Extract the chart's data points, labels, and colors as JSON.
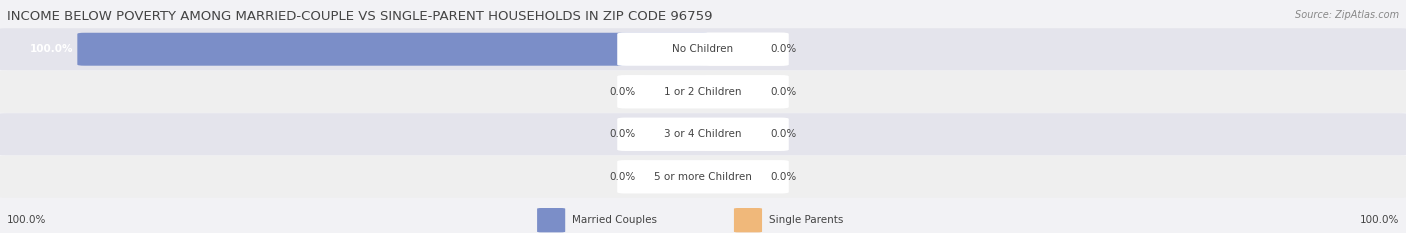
{
  "title": "INCOME BELOW POVERTY AMONG MARRIED-COUPLE VS SINGLE-PARENT HOUSEHOLDS IN ZIP CODE 96759",
  "source": "Source: ZipAtlas.com",
  "categories": [
    "No Children",
    "1 or 2 Children",
    "3 or 4 Children",
    "5 or more Children"
  ],
  "married_values": [
    100.0,
    0.0,
    0.0,
    0.0
  ],
  "single_values": [
    0.0,
    0.0,
    0.0,
    0.0
  ],
  "married_color": "#7B8EC8",
  "single_color": "#F0B87A",
  "married_color_light": "#B0BBDD",
  "single_color_light": "#F5D4A8",
  "row_bg_dark": "#E4E4EC",
  "row_bg_light": "#EFEFEF",
  "overall_bg": "#F2F2F5",
  "title_color": "#444444",
  "value_color": "#444444",
  "legend_married": "Married Couples",
  "legend_single": "Single Parents",
  "title_fontsize": 9.5,
  "label_fontsize": 7.5,
  "value_fontsize": 7.5,
  "footer_value_left": "100.0%",
  "footer_value_right": "100.0%",
  "max_value": 100.0,
  "center_label_bg": "#FFFFFF",
  "placeholder_married_color": "#B0BBDD",
  "placeholder_single_color": "#F5D4A8"
}
